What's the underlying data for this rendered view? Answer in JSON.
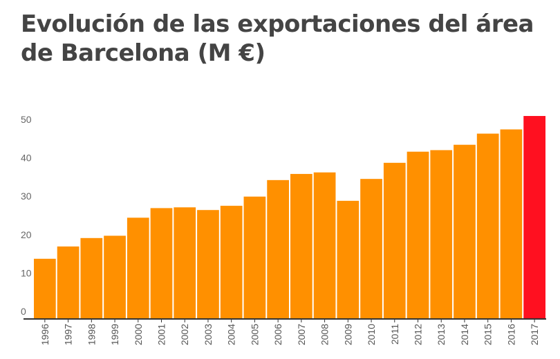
{
  "chart_data": {
    "type": "bar",
    "title": "Evolución de las exportaciones del área de Barcelona (M €)",
    "xlabel": "",
    "ylabel": "",
    "ylim": [
      0,
      53
    ],
    "yticks": [
      0,
      10,
      20,
      30,
      40,
      50
    ],
    "grid": false,
    "categories": [
      "1996",
      "1997",
      "1998",
      "1999",
      "2000",
      "2001",
      "2002",
      "2003",
      "2004",
      "2005",
      "2006",
      "2007",
      "2008",
      "2009",
      "2010",
      "2011",
      "2012",
      "2013",
      "2014",
      "2015",
      "2016",
      "2017"
    ],
    "values": [
      15.5,
      18.7,
      20.9,
      21.5,
      26.2,
      28.7,
      28.9,
      28.2,
      29.3,
      31.7,
      36.0,
      37.6,
      38.0,
      30.6,
      36.3,
      40.5,
      43.4,
      43.8,
      45.2,
      48.1,
      49.2,
      52.7
    ],
    "colors": {
      "bar": "#FF9000",
      "highlight": "#FF1020",
      "highlight_category": "2017",
      "axis": "#333333"
    }
  }
}
